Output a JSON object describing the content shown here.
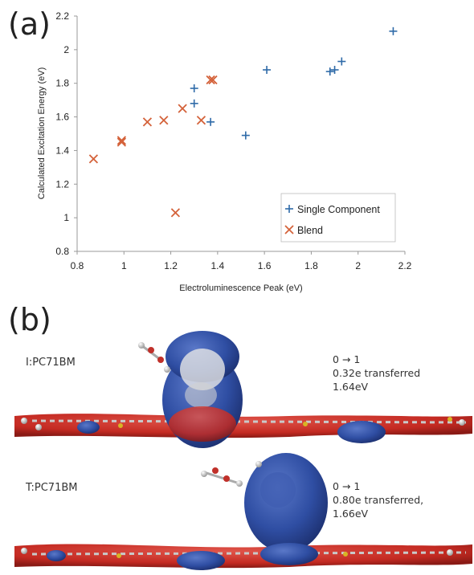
{
  "panel_a": {
    "label": "(a)"
  },
  "panel_b": {
    "label": "(b)"
  },
  "chart_data": {
    "type": "scatter",
    "xlabel": "Electroluminescence Peak (eV)",
    "ylabel": "Calculated Excitation Energy (eV)",
    "xlim": [
      0.8,
      2.2
    ],
    "ylim": [
      0.8,
      2.2
    ],
    "xticks": [
      "0.8",
      "1",
      "1.2",
      "1.4",
      "1.6",
      "1.8",
      "2",
      "2.2"
    ],
    "yticks": [
      "0.8",
      "1",
      "1.2",
      "1.4",
      "1.6",
      "1.8",
      "2",
      "2.2"
    ],
    "grid": false,
    "legend_position": "bottom-right",
    "series": [
      {
        "name": "Single Component",
        "marker": "plus",
        "color": "#2e6aa8",
        "points": [
          [
            1.3,
            1.77
          ],
          [
            1.3,
            1.68
          ],
          [
            1.37,
            1.57
          ],
          [
            1.52,
            1.49
          ],
          [
            1.61,
            1.88
          ],
          [
            1.88,
            1.87
          ],
          [
            1.9,
            1.88
          ],
          [
            1.93,
            1.93
          ],
          [
            2.15,
            2.11
          ]
        ]
      },
      {
        "name": "Blend",
        "marker": "cross",
        "color": "#d4623a",
        "points": [
          [
            0.87,
            1.35
          ],
          [
            0.99,
            1.45
          ],
          [
            0.99,
            1.46
          ],
          [
            1.1,
            1.57
          ],
          [
            1.17,
            1.58
          ],
          [
            1.22,
            1.03
          ],
          [
            1.25,
            1.65
          ],
          [
            1.33,
            1.58
          ],
          [
            1.37,
            1.82
          ],
          [
            1.38,
            1.82
          ]
        ]
      }
    ]
  },
  "molecules": [
    {
      "name": "I:PC71BM",
      "lines": [
        "0 → 1",
        "0.32e transferred",
        "1.64eV"
      ]
    },
    {
      "name": "T:PC71BM",
      "lines": [
        "0 → 1",
        "0.80e transferred,",
        "1.66eV"
      ]
    }
  ],
  "colors": {
    "electron_density": "#2f4ea3",
    "hole_density": "#c42a22",
    "carbon": "#d8d8d8",
    "oxygen": "#c0302a",
    "sulfur": "#d8b424"
  }
}
